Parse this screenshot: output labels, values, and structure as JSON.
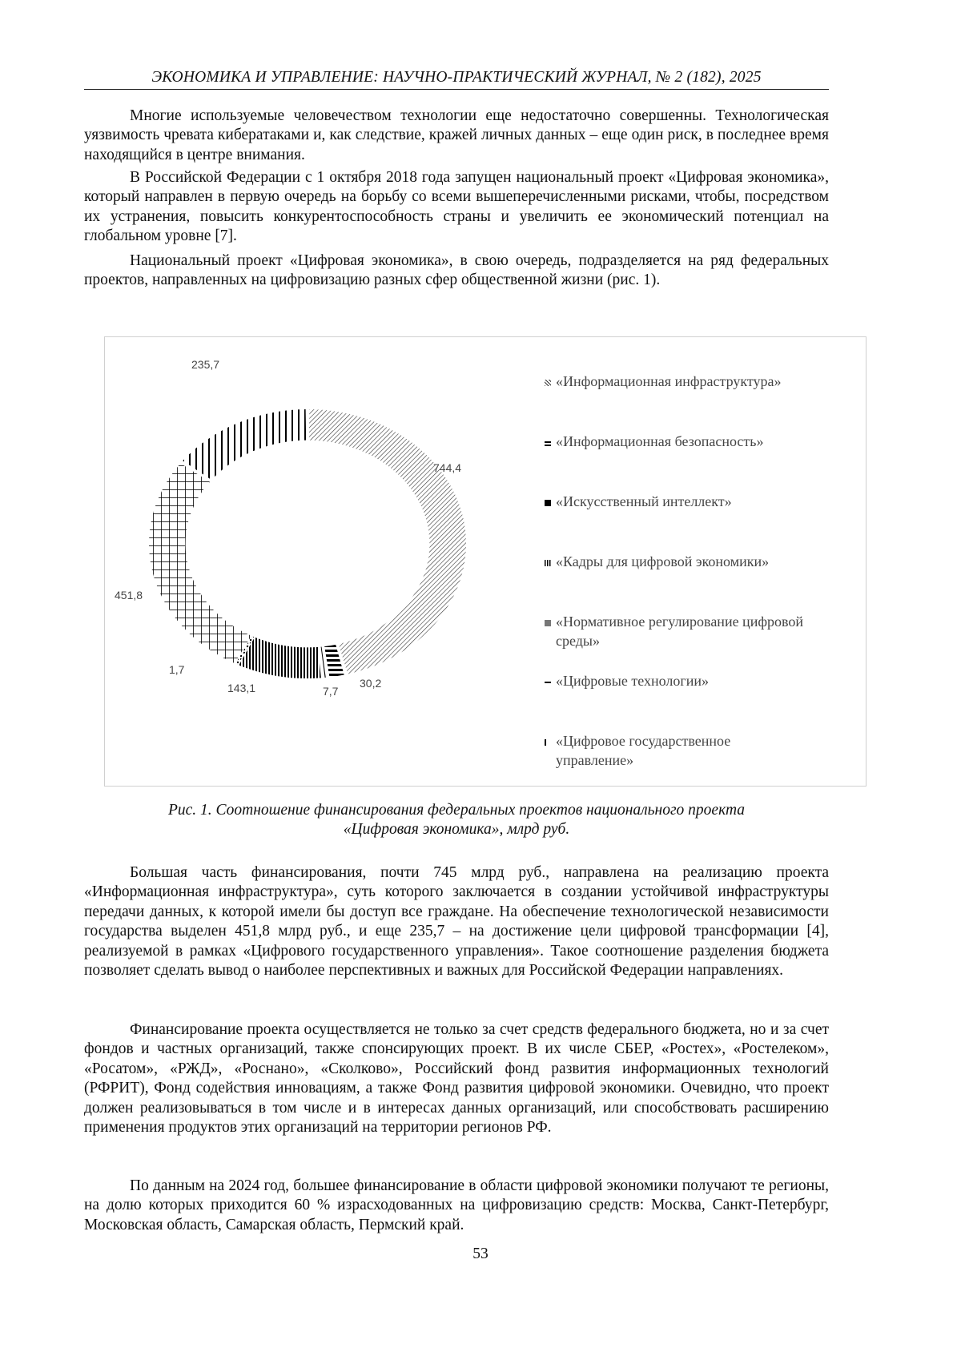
{
  "header": "ЭКОНОМИКА И УПРАВЛЕНИЕ: НАУЧНО-ПРАКТИЧЕСКИЙ ЖУРНАЛ, № 2 (182), 2025",
  "paragraphs_top": [
    "Многие используемые человечеством технологии еще недостаточно совершенны. Технологическая уязвимость чревата кибератаками и, как следствие, кражей личных данных – еще один риск, в последнее время находящийся в центре внимания.",
    "В Российской Федерации с 1 октября 2018 года запущен национальный проект «Цифровая экономика», который направлен в первую очередь на борьбу со всеми вышеперечисленными рисками, чтобы, посредством их устранения, повысить конкурентоспособность страны и увеличить ее экономический потенциал на глобальном уровне [7].",
    "Национальный проект «Цифровая экономика», в свою очередь, подразделяется на ряд федеральных проектов, направленных на цифровизацию разных сфер общественной жизни (рис. 1)."
  ],
  "chart_data": {
    "type": "pie",
    "donut": true,
    "categories": [
      "«Информационная инфраструктура»",
      "«Информационная безопасность»",
      "«Искусственный интеллект»",
      "«Кадры для цифровой экономики»",
      "«Нормативное регулирование цифровой среды»",
      "«Цифровые технологии»",
      "«Цифровое государственное управление»"
    ],
    "values": [
      744.4,
      30.2,
      7.7,
      143.1,
      1.7,
      451.8,
      235.7
    ],
    "data_labels": [
      "744,4",
      "30,2",
      "7,7",
      "143,1",
      "1,7",
      "451,8",
      "235,7"
    ],
    "legend_placement": "right",
    "colors": [
      "#000000"
    ]
  },
  "caption": [
    "Рис. 1. Соотношение финансирования федеральных проектов национального проекта",
    "«Цифровая экономика», млрд руб."
  ],
  "paragraphs_bottom": [
    "Большая часть финансирования, почти 745 млрд руб., направлена на реализацию проекта «Информационная инфраструктура», суть которого заключается в создании устойчивой инфраструктуры передачи данных, к которой имели бы доступ все граждане. На обеспечение технологической независимости государства выделен 451,8 млрд руб., и еще 235,7 – на достижение цели цифровой трансформации [4], реализуемой в рамках «Цифрового государственного управления». Такое соотношение разделения бюджета позволяет сделать вывод о наиболее перспективных и важных для Российской Федерации направлениях.",
    "Финансирование проекта осуществляется не только за счет средств федерального бюджета, но и за счет фондов и частных организаций, также спонсирующих проект. В их числе СБЕР, «Ростех», «Ростелеком», «Росатом», «РЖД», «Роснано», «Сколково», Российский фонд развития информационных технологий (РФРИТ), Фонд содействия инновациям, а также Фонд развития цифровой экономики. Очевидно, что проект должен реализовываться в том числе и в интересах данных организаций, или способствовать расширению применения продуктов этих организаций на территории регионов РФ.",
    "По данным на 2024 год, большее финансирование в области цифровой экономики получают те регионы, на долю которых приходится 60 % израсходованных на цифровизацию средств: Москва, Санкт-Петербург, Московская область, Самарская область, Пермский край."
  ],
  "page_number": "53"
}
